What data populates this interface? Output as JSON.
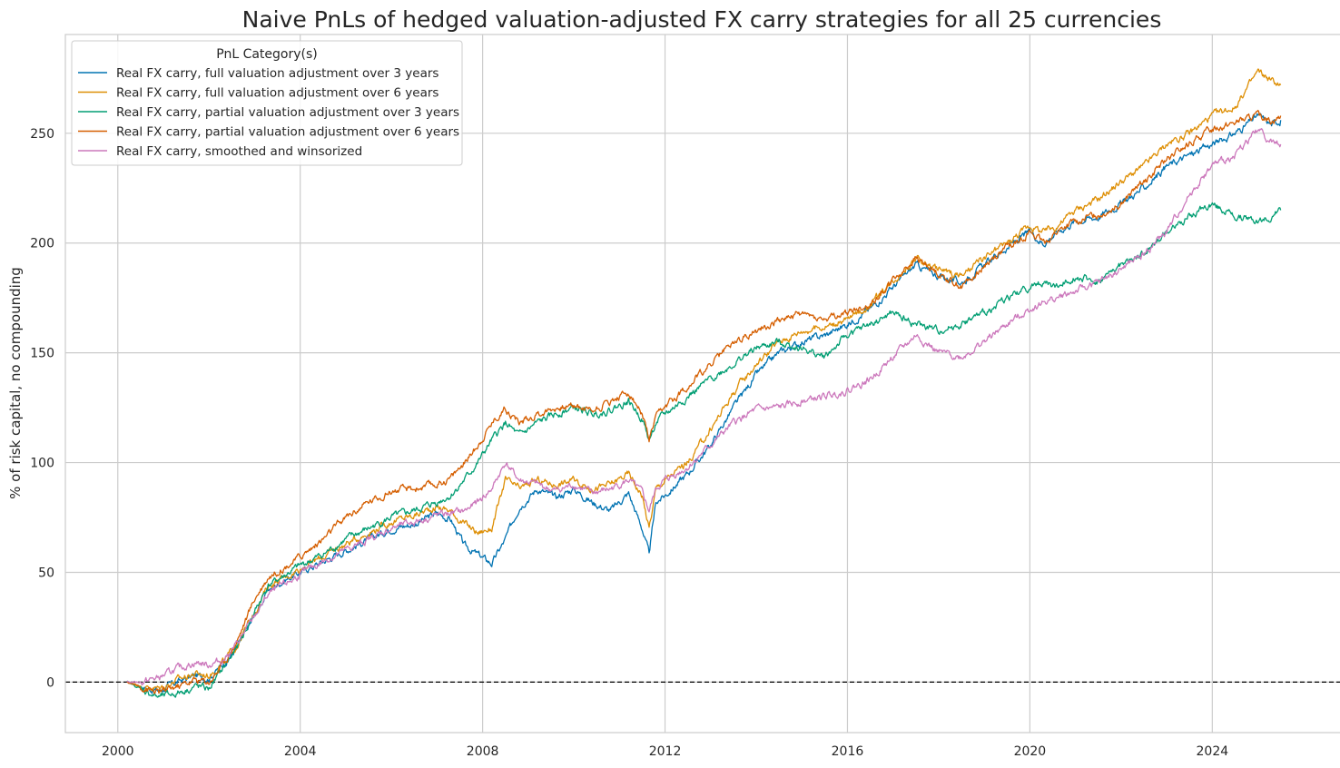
{
  "chart_data": {
    "type": "line",
    "title": "Naive PnLs of hedged valuation-adjusted FX carry strategies for all 25 currencies",
    "xlabel": "",
    "ylabel": "% of risk capital, no compounding",
    "xlim": [
      1998.85,
      2026.9
    ],
    "ylim": [
      -23,
      295
    ],
    "x_ticks": [
      2000,
      2004,
      2008,
      2012,
      2016,
      2020,
      2024
    ],
    "x_tick_labels": [
      "2000",
      "2004",
      "2008",
      "2012",
      "2016",
      "2020",
      "2024"
    ],
    "y_ticks": [
      0,
      50,
      100,
      150,
      200,
      250
    ],
    "y_tick_labels": [
      "0",
      "50",
      "100",
      "150",
      "200",
      "250"
    ],
    "grid": true,
    "zero_line": true,
    "legend": {
      "title": "PnL Category(s)",
      "position": "top-left"
    },
    "series": [
      {
        "name": "Real FX carry, full valuation adjustment over 3 years",
        "color": "#0173b2",
        "x": [
          2000.2,
          2000.5,
          2000.9,
          2001.3,
          2001.7,
          2002.0,
          2002.3,
          2002.6,
          2003.0,
          2003.3,
          2003.7,
          2004.0,
          2004.5,
          2005.0,
          2005.5,
          2006.0,
          2006.5,
          2007.0,
          2007.3,
          2007.6,
          2007.9,
          2008.2,
          2008.5,
          2008.8,
          2009.2,
          2009.6,
          2010.0,
          2010.4,
          2010.8,
          2011.2,
          2011.5,
          2011.65,
          2011.8,
          2012.0,
          2012.5,
          2013.0,
          2013.5,
          2014.0,
          2014.5,
          2015.0,
          2015.5,
          2016.0,
          2016.5,
          2017.0,
          2017.5,
          2018.0,
          2018.5,
          2019.0,
          2019.5,
          2020.0,
          2020.3,
          2020.6,
          2021.0,
          2021.5,
          2022.0,
          2022.5,
          2023.0,
          2023.5,
          2024.0,
          2024.5,
          2025.0,
          2025.3,
          2025.5
        ],
        "values": [
          0,
          -2,
          -4,
          0,
          3,
          2,
          8,
          15,
          30,
          42,
          47,
          50,
          55,
          60,
          65,
          70,
          72,
          77,
          74,
          62,
          58,
          54,
          65,
          80,
          88,
          84,
          88,
          82,
          78,
          86,
          70,
          58,
          82,
          85,
          95,
          108,
          125,
          140,
          150,
          155,
          158,
          163,
          170,
          180,
          190,
          185,
          182,
          190,
          198,
          205,
          200,
          205,
          210,
          212,
          218,
          225,
          235,
          240,
          245,
          250,
          258,
          254,
          256
        ]
      },
      {
        "name": "Real FX carry, full valuation adjustment over 6 years",
        "color": "#de8f05",
        "x": [
          2000.2,
          2000.5,
          2000.9,
          2001.3,
          2001.7,
          2002.0,
          2002.3,
          2002.6,
          2003.0,
          2003.3,
          2003.7,
          2004.0,
          2004.5,
          2005.0,
          2005.5,
          2006.0,
          2006.5,
          2007.0,
          2007.3,
          2007.6,
          2007.9,
          2008.2,
          2008.5,
          2008.8,
          2009.2,
          2009.6,
          2010.0,
          2010.4,
          2010.8,
          2011.2,
          2011.5,
          2011.65,
          2011.8,
          2012.0,
          2012.5,
          2013.0,
          2013.5,
          2014.0,
          2014.5,
          2015.0,
          2015.5,
          2016.0,
          2016.5,
          2017.0,
          2017.5,
          2018.0,
          2018.5,
          2019.0,
          2019.5,
          2020.0,
          2020.3,
          2020.6,
          2021.0,
          2021.5,
          2022.0,
          2022.5,
          2023.0,
          2023.5,
          2024.0,
          2024.5,
          2025.0,
          2025.3,
          2025.5
        ],
        "values": [
          0,
          -2,
          -3,
          1,
          4,
          3,
          9,
          16,
          32,
          44,
          48,
          52,
          57,
          63,
          68,
          73,
          76,
          80,
          78,
          72,
          68,
          70,
          92,
          88,
          92,
          90,
          92,
          88,
          90,
          95,
          85,
          70,
          88,
          92,
          100,
          115,
          132,
          145,
          155,
          160,
          162,
          165,
          172,
          183,
          193,
          188,
          185,
          193,
          200,
          208,
          205,
          208,
          215,
          220,
          228,
          235,
          245,
          250,
          258,
          262,
          278,
          274,
          272
        ]
      },
      {
        "name": "Real FX carry, partial valuation adjustment over 3 years",
        "color": "#029e73",
        "x": [
          2000.2,
          2000.5,
          2000.9,
          2001.3,
          2001.7,
          2002.0,
          2002.3,
          2002.6,
          2003.0,
          2003.3,
          2003.7,
          2004.0,
          2004.5,
          2005.0,
          2005.5,
          2006.0,
          2006.5,
          2007.0,
          2007.3,
          2007.6,
          2007.9,
          2008.2,
          2008.5,
          2008.8,
          2009.2,
          2009.6,
          2010.0,
          2010.4,
          2010.8,
          2011.2,
          2011.5,
          2011.65,
          2011.8,
          2012.0,
          2012.5,
          2013.0,
          2013.5,
          2014.0,
          2014.5,
          2015.0,
          2015.5,
          2016.0,
          2016.5,
          2017.0,
          2017.5,
          2018.0,
          2018.5,
          2019.0,
          2019.5,
          2020.0,
          2020.3,
          2020.6,
          2021.0,
          2021.5,
          2022.0,
          2022.5,
          2023.0,
          2023.5,
          2024.0,
          2024.5,
          2025.0,
          2025.3,
          2025.5
        ],
        "values": [
          0,
          -3,
          -7,
          -5,
          -2,
          -3,
          6,
          15,
          32,
          44,
          49,
          53,
          58,
          65,
          70,
          75,
          78,
          82,
          85,
          92,
          100,
          110,
          118,
          112,
          118,
          122,
          125,
          122,
          124,
          128,
          120,
          110,
          118,
          122,
          130,
          138,
          145,
          152,
          155,
          152,
          148,
          158,
          163,
          168,
          163,
          160,
          163,
          168,
          175,
          180,
          182,
          180,
          185,
          182,
          190,
          195,
          205,
          212,
          218,
          212,
          210,
          212,
          215
        ]
      },
      {
        "name": "Real FX carry, partial valuation adjustment over 6 years",
        "color": "#d55e00",
        "x": [
          2000.2,
          2000.5,
          2000.9,
          2001.3,
          2001.7,
          2002.0,
          2002.3,
          2002.6,
          2003.0,
          2003.3,
          2003.7,
          2004.0,
          2004.5,
          2005.0,
          2005.5,
          2006.0,
          2006.5,
          2007.0,
          2007.3,
          2007.6,
          2007.9,
          2008.2,
          2008.5,
          2008.8,
          2009.2,
          2009.6,
          2010.0,
          2010.4,
          2010.8,
          2011.2,
          2011.5,
          2011.65,
          2011.8,
          2012.0,
          2012.5,
          2013.0,
          2013.5,
          2014.0,
          2014.5,
          2015.0,
          2015.5,
          2016.0,
          2016.5,
          2017.0,
          2017.5,
          2018.0,
          2018.5,
          2019.0,
          2019.5,
          2020.0,
          2020.3,
          2020.6,
          2021.0,
          2021.5,
          2022.0,
          2022.5,
          2023.0,
          2023.5,
          2024.0,
          2024.5,
          2025.0,
          2025.3,
          2025.5
        ],
        "values": [
          0,
          -2,
          -5,
          -2,
          1,
          0,
          8,
          18,
          38,
          48,
          53,
          57,
          65,
          75,
          82,
          87,
          88,
          90,
          93,
          100,
          108,
          118,
          125,
          118,
          122,
          125,
          126,
          124,
          128,
          132,
          122,
          110,
          120,
          125,
          135,
          145,
          155,
          160,
          165,
          168,
          165,
          168,
          172,
          183,
          193,
          186,
          180,
          190,
          198,
          205,
          200,
          205,
          210,
          213,
          218,
          228,
          238,
          245,
          252,
          255,
          258,
          256,
          258
        ]
      },
      {
        "name": "Real FX carry, smoothed and winsorized",
        "color": "#cc78bc",
        "x": [
          2000.2,
          2000.5,
          2000.9,
          2001.3,
          2001.7,
          2002.0,
          2002.3,
          2002.6,
          2003.0,
          2003.3,
          2003.7,
          2004.0,
          2004.5,
          2005.0,
          2005.5,
          2006.0,
          2006.5,
          2007.0,
          2007.3,
          2007.6,
          2007.9,
          2008.2,
          2008.5,
          2008.8,
          2009.2,
          2009.6,
          2010.0,
          2010.4,
          2010.8,
          2011.2,
          2011.5,
          2011.65,
          2011.8,
          2012.0,
          2012.5,
          2013.0,
          2013.5,
          2014.0,
          2014.5,
          2015.0,
          2015.5,
          2016.0,
          2016.5,
          2017.0,
          2017.5,
          2018.0,
          2018.5,
          2019.0,
          2019.5,
          2020.0,
          2020.3,
          2020.6,
          2021.0,
          2021.5,
          2022.0,
          2022.5,
          2023.0,
          2023.5,
          2024.0,
          2024.5,
          2025.0,
          2025.3,
          2025.5
        ],
        "values": [
          0,
          0,
          2,
          6,
          9,
          8,
          10,
          17,
          30,
          40,
          45,
          49,
          55,
          60,
          65,
          70,
          73,
          76,
          77,
          78,
          82,
          88,
          100,
          92,
          90,
          87,
          90,
          86,
          88,
          92,
          86,
          78,
          88,
          92,
          98,
          108,
          118,
          124,
          125,
          128,
          130,
          133,
          138,
          148,
          158,
          150,
          148,
          155,
          163,
          170,
          173,
          175,
          178,
          182,
          188,
          195,
          205,
          222,
          235,
          240,
          252,
          246,
          245
        ]
      }
    ]
  }
}
